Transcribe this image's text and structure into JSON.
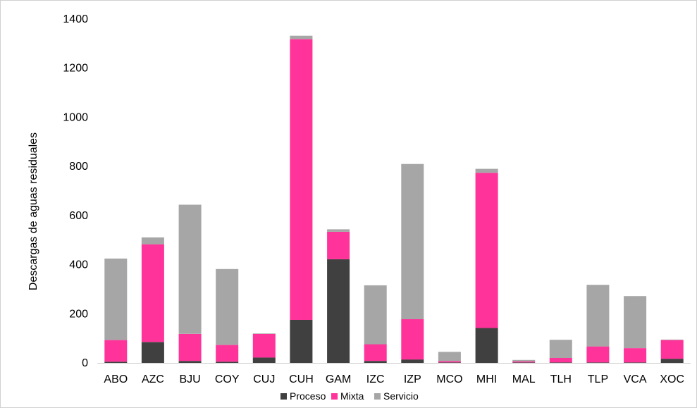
{
  "chart_data": {
    "type": "bar",
    "stacked": true,
    "categories": [
      "ABO",
      "AZC",
      "BJU",
      "COY",
      "CUJ",
      "CUH",
      "GAM",
      "IZC",
      "IZP",
      "MCO",
      "MHI",
      "MAL",
      "TLH",
      "TLP",
      "VCA",
      "XOC"
    ],
    "series": [
      {
        "name": "Proceso",
        "color": "#404040",
        "values": [
          5,
          85,
          8,
          5,
          22,
          175,
          422,
          8,
          14,
          2,
          142,
          2,
          2,
          2,
          2,
          17
        ]
      },
      {
        "name": "Mixta",
        "color": "#ff3399",
        "values": [
          88,
          398,
          110,
          68,
          96,
          1143,
          112,
          68,
          164,
          5,
          632,
          4,
          18,
          65,
          58,
          76
        ]
      },
      {
        "name": "Servicio",
        "color": "#a6a6a6",
        "values": [
          332,
          28,
          526,
          309,
          2,
          14,
          10,
          240,
          632,
          38,
          16,
          6,
          74,
          251,
          212,
          2
        ]
      }
    ],
    "ylabel": "Descargas de  aguas residuales",
    "xlabel": "",
    "ylim": [
      0,
      1400
    ],
    "yticks": [
      0,
      200,
      400,
      600,
      800,
      1000,
      1200,
      1400
    ],
    "grid": false,
    "legend": "bottom"
  }
}
